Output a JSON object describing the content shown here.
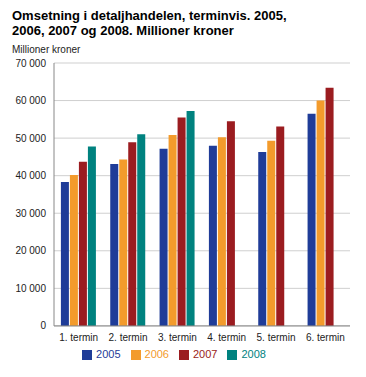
{
  "chart_data": {
    "type": "bar",
    "title": "Omsetning i detaljhandelen, terminvis.  2005, 2006, 2007 og 2008. Millioner kroner",
    "y_label": "Millioner kroner",
    "categories": [
      "1. termin",
      "2. termin",
      "3. termin",
      "4. termin",
      "5. termin",
      "6. termin"
    ],
    "series": [
      {
        "name": "2005",
        "color": "#1f3c98",
        "values": [
          38300,
          43100,
          47200,
          48000,
          46300,
          56500
        ]
      },
      {
        "name": "2006",
        "color": "#f39b2c",
        "values": [
          40200,
          44300,
          50800,
          50200,
          49300,
          60000
        ]
      },
      {
        "name": "2007",
        "color": "#9b1c20",
        "values": [
          43700,
          48900,
          55500,
          54500,
          53100,
          63400
        ]
      },
      {
        "name": "2008",
        "color": "#00827f",
        "values": [
          47800,
          51000,
          57200,
          null,
          null,
          null
        ]
      }
    ],
    "ylim": [
      0,
      70000
    ],
    "yticks": [
      0,
      {
        "value": 10000,
        "label": "10 000"
      },
      {
        "value": 20000,
        "label": "20 000"
      },
      {
        "value": 30000,
        "label": "30 000"
      },
      {
        "value": 40000,
        "label": "40 000"
      },
      {
        "value": 50000,
        "label": "50 000"
      },
      {
        "value": 60000,
        "label": "60 000"
      },
      {
        "value": 70000,
        "label": "70 000"
      }
    ],
    "grid": true,
    "legend": "bottom"
  }
}
